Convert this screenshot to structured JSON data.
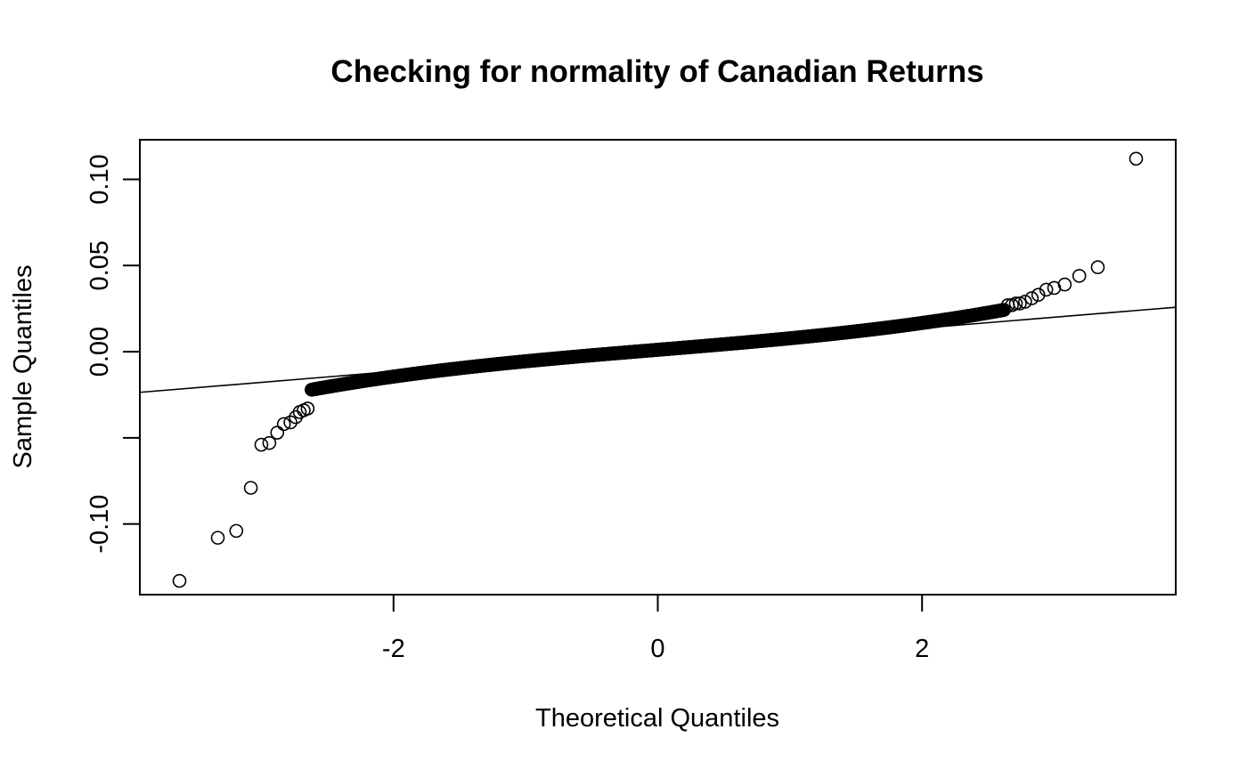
{
  "chart_data": {
    "type": "scatter",
    "title": "Checking for normality of Canadian Returns",
    "xlabel": "Theoretical Quantiles",
    "ylabel": "Sample Quantiles",
    "xlim": [
      -3.92,
      3.92
    ],
    "ylim": [
      -0.141,
      0.123
    ],
    "x_ticks": [
      {
        "value": -2,
        "label": "-2"
      },
      {
        "value": 0,
        "label": "0"
      },
      {
        "value": 2,
        "label": "2"
      }
    ],
    "y_ticks": [
      {
        "value": -0.1,
        "label": "-0.10"
      },
      {
        "value": -0.05,
        "label": ""
      },
      {
        "value": 0.0,
        "label": "0.00"
      },
      {
        "value": 0.05,
        "label": "0.05"
      },
      {
        "value": 0.1,
        "label": "0.10"
      }
    ],
    "grid": false,
    "legend": "none",
    "reference_line": {
      "intercept": 0.0011,
      "slope": 0.0063
    },
    "core_distribution": {
      "n": 1000,
      "x_min": -2.62,
      "x_max": 2.62,
      "intercept": 0.0011,
      "slope": 0.0063,
      "cubic": 0.00037
    },
    "tail_points": [
      {
        "x": -3.62,
        "y": -0.133
      },
      {
        "x": -3.33,
        "y": -0.108
      },
      {
        "x": -3.19,
        "y": -0.104
      },
      {
        "x": -3.08,
        "y": -0.079
      },
      {
        "x": -3.0,
        "y": -0.054
      },
      {
        "x": -2.94,
        "y": -0.053
      },
      {
        "x": -2.88,
        "y": -0.047
      },
      {
        "x": -2.83,
        "y": -0.042
      },
      {
        "x": -2.78,
        "y": -0.041
      },
      {
        "x": -2.74,
        "y": -0.038
      },
      {
        "x": -2.71,
        "y": -0.035
      },
      {
        "x": -2.68,
        "y": -0.034
      },
      {
        "x": -2.65,
        "y": -0.033
      },
      {
        "x": 2.65,
        "y": 0.027
      },
      {
        "x": 2.68,
        "y": 0.027
      },
      {
        "x": 2.71,
        "y": 0.028
      },
      {
        "x": 2.74,
        "y": 0.028
      },
      {
        "x": 2.78,
        "y": 0.029
      },
      {
        "x": 2.83,
        "y": 0.031
      },
      {
        "x": 2.88,
        "y": 0.033
      },
      {
        "x": 2.94,
        "y": 0.036
      },
      {
        "x": 3.0,
        "y": 0.037
      },
      {
        "x": 3.08,
        "y": 0.039
      },
      {
        "x": 3.19,
        "y": 0.044
      },
      {
        "x": 3.33,
        "y": 0.049
      },
      {
        "x": 3.62,
        "y": 0.112
      }
    ]
  }
}
